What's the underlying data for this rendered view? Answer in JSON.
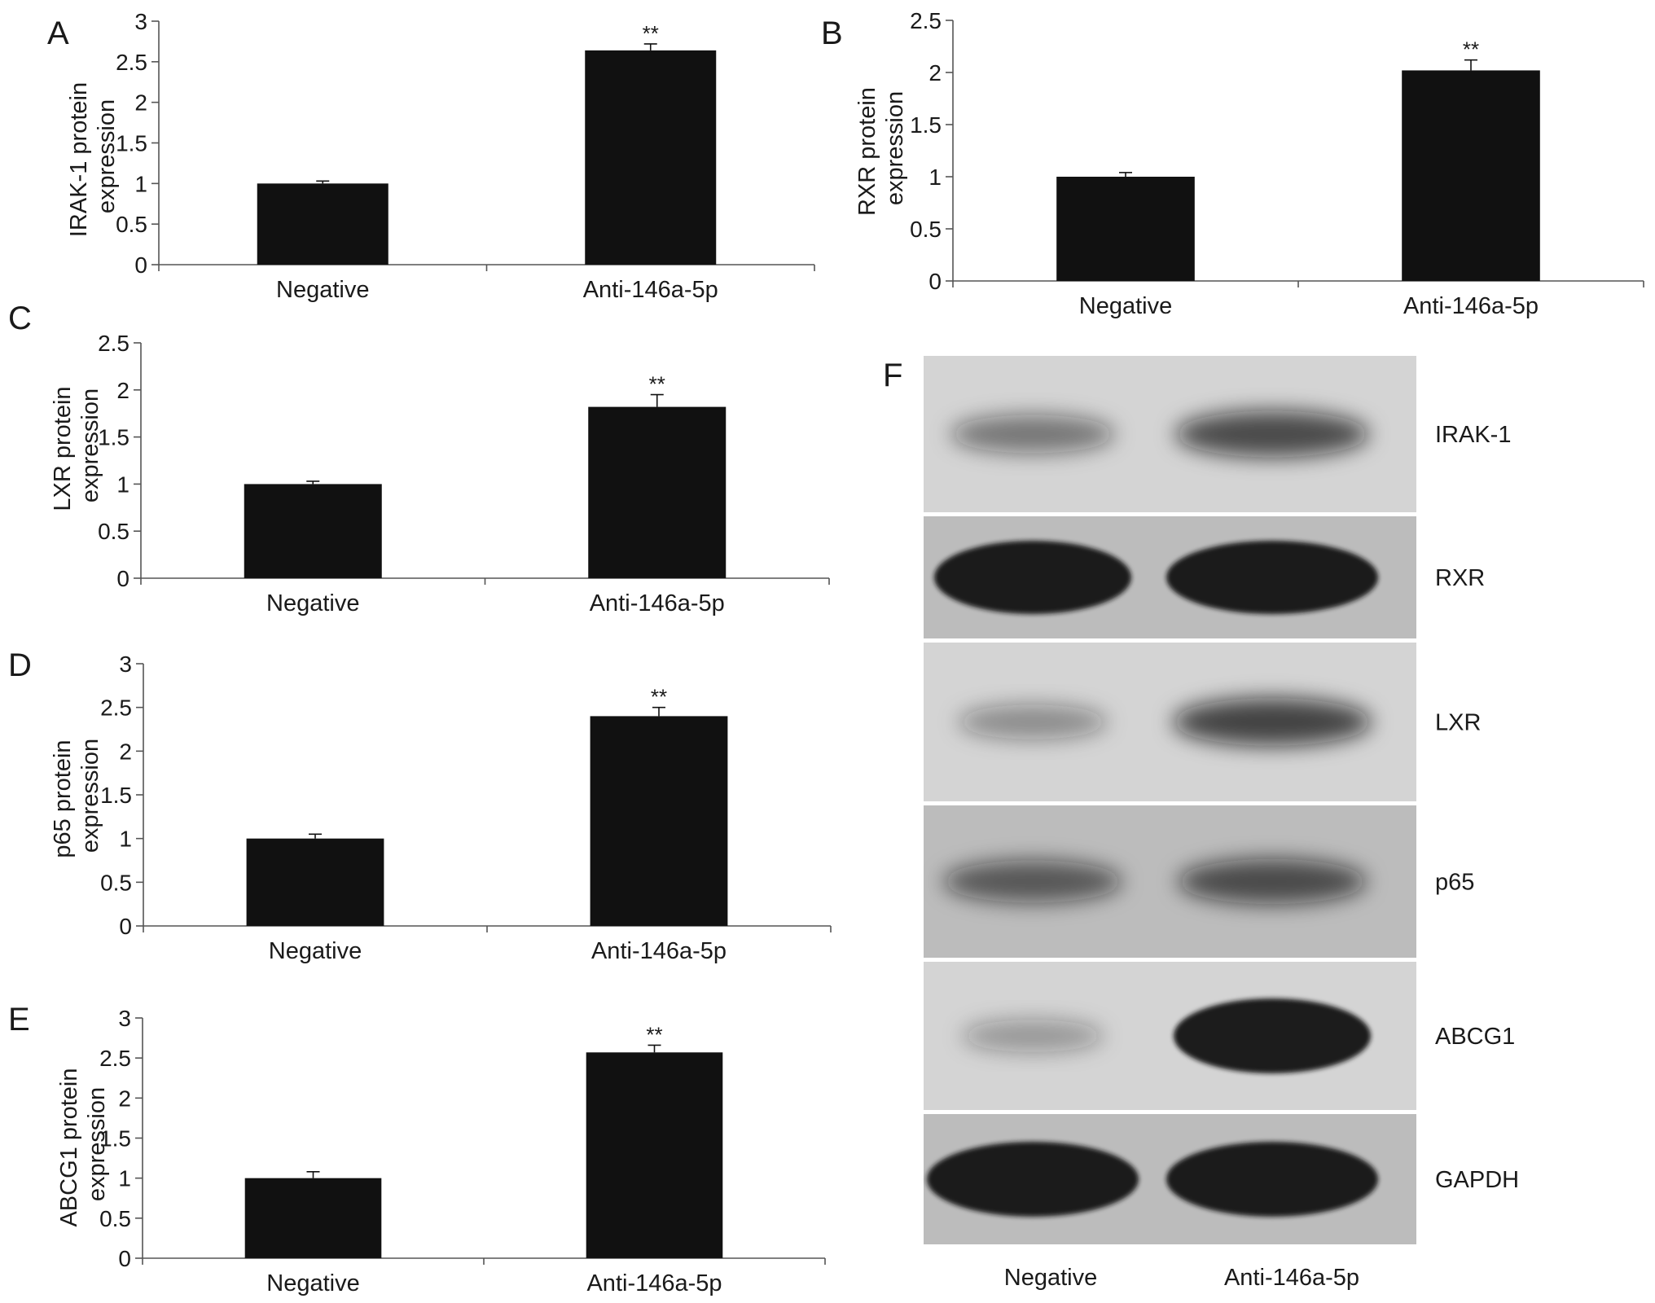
{
  "chart_data": [
    {
      "type": "bar",
      "panel_label": "A",
      "categories": [
        "Negative",
        "Anti-146a-5p"
      ],
      "values": [
        1.0,
        2.64
      ],
      "errors": [
        0.03,
        0.08
      ],
      "significance": [
        "",
        "**"
      ],
      "ylabel": [
        "IRAK-1 protein",
        "expression"
      ],
      "ylim": [
        0,
        3
      ],
      "yticks": [
        0,
        0.5,
        1,
        1.5,
        2,
        2.5,
        3
      ],
      "ytick_labels": [
        "0",
        "0.5",
        "1",
        "1.5",
        "2",
        "2.5",
        "3"
      ],
      "grid": false
    },
    {
      "type": "bar",
      "panel_label": "B",
      "categories": [
        "Negative",
        "Anti-146a-5p"
      ],
      "values": [
        1.0,
        2.02
      ],
      "errors": [
        0.04,
        0.1
      ],
      "significance": [
        "",
        "**"
      ],
      "ylabel": [
        "RXR protein",
        "expression"
      ],
      "ylim": [
        0,
        2.5
      ],
      "yticks": [
        0,
        0.5,
        1,
        1.5,
        2,
        2.5
      ],
      "ytick_labels": [
        "0",
        "0.5",
        "1",
        "1.5",
        "2",
        "2.5"
      ],
      "grid": false
    },
    {
      "type": "bar",
      "panel_label": "C",
      "categories": [
        "Negative",
        "Anti-146a-5p"
      ],
      "values": [
        1.0,
        1.82
      ],
      "errors": [
        0.03,
        0.13
      ],
      "significance": [
        "",
        "**"
      ],
      "ylabel": [
        "LXR protein",
        "expression"
      ],
      "ylim": [
        0,
        2.5
      ],
      "yticks": [
        0,
        0.5,
        1,
        1.5,
        2,
        2.5
      ],
      "ytick_labels": [
        "0",
        "0.5",
        "1",
        "1.5",
        "2",
        "2.5"
      ],
      "grid": false
    },
    {
      "type": "bar",
      "panel_label": "D",
      "categories": [
        "Negative",
        "Anti-146a-5p"
      ],
      "values": [
        1.0,
        2.4
      ],
      "errors": [
        0.05,
        0.1
      ],
      "significance": [
        "",
        "**"
      ],
      "ylabel": [
        "p65 protein",
        "expression"
      ],
      "ylim": [
        0,
        3
      ],
      "yticks": [
        0,
        0.5,
        1,
        1.5,
        2,
        2.5,
        3
      ],
      "ytick_labels": [
        "0",
        "0.5",
        "1",
        "1.5",
        "2",
        "2.5",
        "3"
      ],
      "grid": false
    },
    {
      "type": "bar",
      "panel_label": "E",
      "categories": [
        "Negative",
        "Anti-146a-5p"
      ],
      "values": [
        1.0,
        2.57
      ],
      "errors": [
        0.08,
        0.09
      ],
      "significance": [
        "",
        "**"
      ],
      "ylabel": [
        "ABCG1 protein",
        "expression"
      ],
      "ylim": [
        0,
        3
      ],
      "yticks": [
        0,
        0.5,
        1,
        1.5,
        2,
        2.5,
        3
      ],
      "ytick_labels": [
        "0",
        "0.5",
        "1",
        "1.5",
        "2",
        "2.5",
        "3"
      ],
      "grid": false
    }
  ],
  "western_blot": {
    "panel_label": "F",
    "lanes": [
      "Negative",
      "Anti-146a-5p"
    ],
    "proteins": [
      "IRAK-1",
      "RXR",
      "LXR",
      "p65",
      "ABCG1",
      "GAPDH"
    ],
    "band_intensity": [
      [
        0.35,
        0.65
      ],
      [
        0.95,
        1.0
      ],
      [
        0.2,
        0.7
      ],
      [
        0.5,
        0.6
      ],
      [
        0.12,
        0.95
      ],
      [
        1.0,
        1.0
      ]
    ],
    "colors": {
      "membrane_light": "#d4d4d4",
      "membrane_dark": "#bcbcbc",
      "band": "#141414"
    }
  }
}
